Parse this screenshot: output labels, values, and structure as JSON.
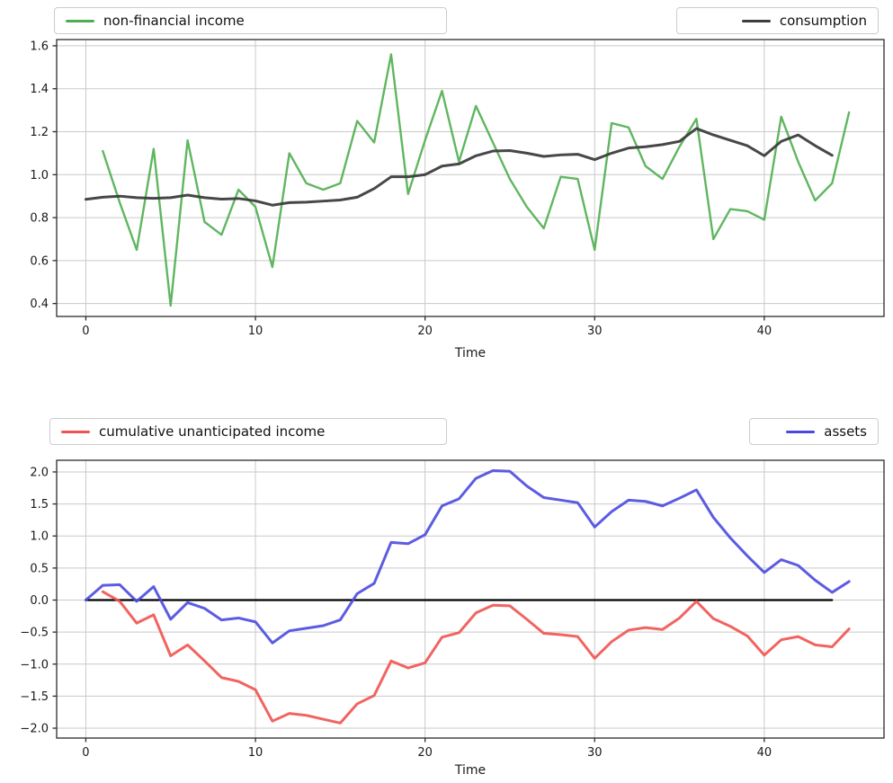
{
  "figure": {
    "xlabel": "Time",
    "background": "#ffffff",
    "grid_color": "#c9c9c9",
    "frame_color": "#2b2b2b"
  },
  "chart_data": [
    {
      "type": "line",
      "title": "",
      "xlabel": "Time",
      "ylabel": "",
      "grid": true,
      "legend_position": "above-axes, split left and right",
      "x_ticks": [
        0,
        10,
        20,
        30,
        40
      ],
      "y_ticks": [
        0.4,
        0.6,
        0.8,
        1.0,
        1.2,
        1.4,
        1.6
      ],
      "xlim": [
        -1.72,
        47.06
      ],
      "ylim": [
        0.34,
        1.629
      ],
      "series": [
        {
          "name": "non-financial income",
          "color": "#4fae4f",
          "lw": 2.4,
          "opacity": 0.9,
          "x_start": 1,
          "x_step": 1,
          "values": [
            1.11,
            0.87,
            0.65,
            1.12,
            0.39,
            1.16,
            0.78,
            0.72,
            0.93,
            0.85,
            0.57,
            1.1,
            0.96,
            0.93,
            0.96,
            1.25,
            1.15,
            1.56,
            0.91,
            1.16,
            1.39,
            1.06,
            1.32,
            1.15,
            0.98,
            0.85,
            0.75,
            0.99,
            0.98,
            0.65,
            1.24,
            1.22,
            1.04,
            0.98,
            1.13,
            1.26,
            0.7,
            0.84,
            0.83,
            0.79,
            1.27,
            1.06,
            0.88,
            0.96,
            1.29
          ]
        },
        {
          "name": "consumption",
          "color": "#3d3d3d",
          "lw": 3,
          "opacity": 0.95,
          "x_start": 0,
          "x_step": 1,
          "values": [
            0.885,
            0.895,
            0.9,
            0.893,
            0.89,
            0.893,
            0.905,
            0.893,
            0.886,
            0.889,
            0.878,
            0.858,
            0.87,
            0.872,
            0.877,
            0.882,
            0.895,
            0.935,
            0.99,
            0.99,
            1.0,
            1.04,
            1.05,
            1.088,
            1.11,
            1.112,
            1.1,
            1.085,
            1.092,
            1.095,
            1.07,
            1.1,
            1.124,
            1.13,
            1.14,
            1.155,
            1.215,
            1.185,
            1.16,
            1.135,
            1.088,
            1.155,
            1.185,
            1.135,
            1.09
          ]
        }
      ]
    },
    {
      "type": "line",
      "title": "",
      "xlabel": "Time",
      "ylabel": "",
      "grid": true,
      "legend_position": "above-axes, split left and right",
      "x_ticks": [
        0,
        10,
        20,
        30,
        40
      ],
      "y_ticks": [
        -2.0,
        -1.5,
        -1.0,
        -0.5,
        0.0,
        0.5,
        1.0,
        1.5,
        2.0
      ],
      "xlim": [
        -1.72,
        47.06
      ],
      "ylim": [
        -2.154,
        2.182
      ],
      "series": [
        {
          "name": "zero-baseline",
          "in_legend": false,
          "color": "#000000",
          "lw": 2.2,
          "opacity": 1,
          "x_start": 0,
          "x_step": 44,
          "values": [
            0,
            0
          ]
        },
        {
          "name": "cumulative unanticipated income",
          "color": "#ef5350",
          "lw": 3,
          "opacity": 0.9,
          "x_start": 1,
          "x_step": 1,
          "values": [
            0.13,
            -0.02,
            -0.36,
            -0.23,
            -0.87,
            -0.7,
            -0.95,
            -1.21,
            -1.27,
            -1.4,
            -1.89,
            -1.77,
            -1.8,
            -1.86,
            -1.92,
            -1.62,
            -1.49,
            -0.95,
            -1.06,
            -0.98,
            -0.58,
            -0.51,
            -0.2,
            -0.08,
            -0.09,
            -0.3,
            -0.52,
            -0.54,
            -0.57,
            -0.91,
            -0.65,
            -0.47,
            -0.43,
            -0.46,
            -0.28,
            -0.02,
            -0.29,
            -0.41,
            -0.56,
            -0.86,
            -0.62,
            -0.57,
            -0.7,
            -0.73,
            -0.45
          ]
        },
        {
          "name": "assets",
          "color": "#4a4ae0",
          "lw": 3,
          "opacity": 0.9,
          "x_start": 0,
          "x_step": 1,
          "values": [
            0.0,
            0.23,
            0.24,
            -0.02,
            0.21,
            -0.3,
            -0.04,
            -0.13,
            -0.31,
            -0.28,
            -0.34,
            -0.67,
            -0.48,
            -0.44,
            -0.4,
            -0.31,
            0.1,
            0.26,
            0.9,
            0.88,
            1.02,
            1.47,
            1.58,
            1.9,
            2.02,
            2.01,
            1.78,
            1.6,
            1.56,
            1.52,
            1.14,
            1.38,
            1.56,
            1.54,
            1.47,
            1.59,
            1.72,
            1.29,
            0.97,
            0.69,
            0.43,
            0.63,
            0.54,
            0.31,
            0.12,
            0.29
          ]
        }
      ]
    }
  ],
  "legends": {
    "top_left_label": "non-financial income",
    "top_right_label": "consumption",
    "bottom_left_label": "cumulative unanticipated income",
    "bottom_right_label": "assets"
  },
  "axis_text": {
    "top_xlabel": "Time",
    "bottom_xlabel": "Time"
  }
}
